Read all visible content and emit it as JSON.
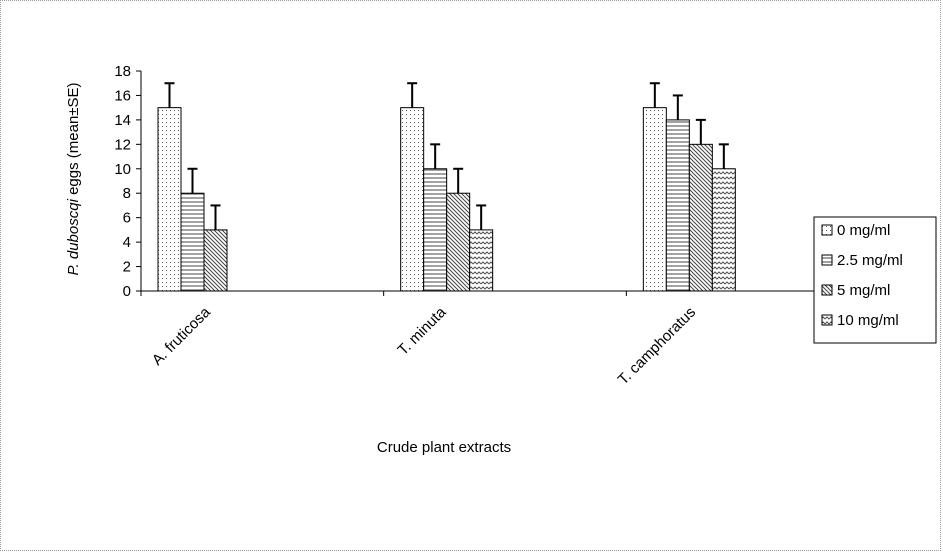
{
  "chart_data": {
    "type": "bar",
    "categories": [
      "A. fruticosa",
      "T. minuta",
      "T. camphoratus"
    ],
    "series": [
      {
        "name": "0 mg/ml",
        "values": [
          15,
          15,
          15
        ],
        "errors": [
          2,
          2,
          2
        ],
        "pattern": "dots"
      },
      {
        "name": "2.5 mg/ml",
        "values": [
          8,
          10,
          14
        ],
        "errors": [
          2,
          2,
          2
        ],
        "pattern": "hlines"
      },
      {
        "name": "5 mg/ml",
        "values": [
          5,
          8,
          12
        ],
        "errors": [
          2,
          2,
          2
        ],
        "pattern": "diag"
      },
      {
        "name": "10 mg/ml",
        "values": [
          null,
          5,
          10
        ],
        "errors": [
          null,
          2,
          2
        ],
        "pattern": "zigzag"
      }
    ],
    "ylabel_italic": "P. duboscqi",
    "ylabel_rest": " eggs (mean±SE)",
    "xlabel": "Crude plant extracts",
    "ylim": [
      0,
      18
    ],
    "yticks": [
      0,
      2,
      4,
      6,
      8,
      10,
      12,
      14,
      16,
      18
    ],
    "grid": false,
    "legend_position": "right"
  }
}
